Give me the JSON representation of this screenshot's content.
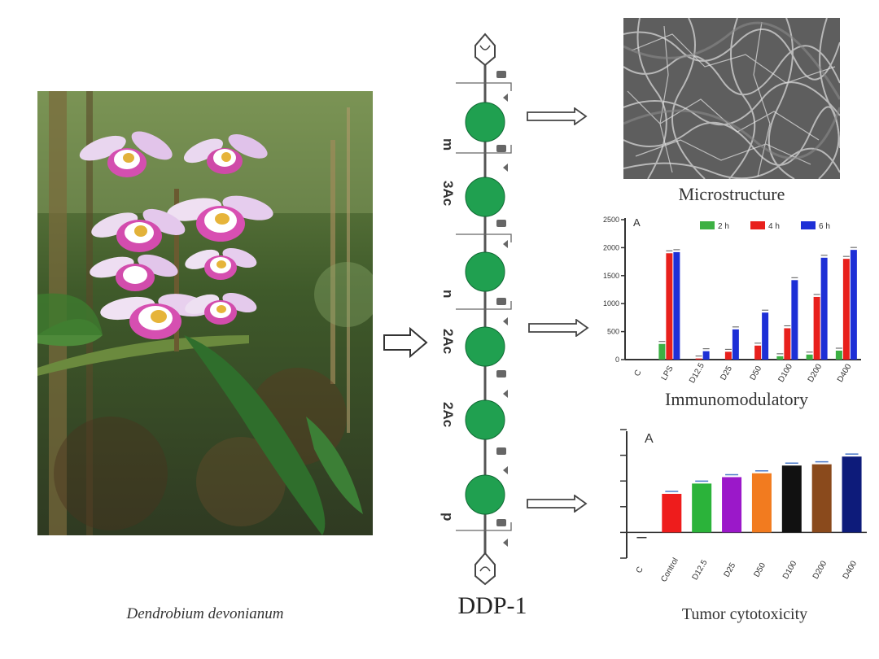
{
  "plant": {
    "caption": "Dendrobium devonianum"
  },
  "structure": {
    "name": "DDP-1",
    "side_labels": [
      "m",
      "3Ac",
      "n",
      "2Ac",
      "2Ac",
      "p"
    ]
  },
  "microstructure": {
    "caption": "Microstructure"
  },
  "immuno": {
    "caption": "Immunomodulatory",
    "panel_letter": "A",
    "chart_data": {
      "type": "bar",
      "categories": [
        "C",
        "LPS",
        "D12.5",
        "D25",
        "D50",
        "D100",
        "D200",
        "D400"
      ],
      "series": [
        {
          "name": "2 h",
          "color": "#3cb043",
          "values": [
            0,
            280,
            0,
            0,
            0,
            60,
            90,
            160
          ]
        },
        {
          "name": "4 h",
          "color": "#e8201c",
          "values": [
            0,
            1900,
            20,
            140,
            250,
            560,
            1120,
            1800
          ]
        },
        {
          "name": "6 h",
          "color": "#1d2fd6",
          "values": [
            0,
            1920,
            150,
            540,
            840,
            1420,
            1820,
            1960
          ]
        }
      ],
      "yticks": [
        "0",
        "500",
        "1000",
        "1500",
        "2000",
        "2500"
      ],
      "ylim": [
        0,
        2500
      ]
    }
  },
  "tumor": {
    "caption": "Tumor cytotoxicity",
    "panel_letter": "A",
    "chart_data": {
      "type": "bar",
      "categories": [
        "C",
        "Control",
        "D12.5",
        "D25",
        "D50",
        "D100",
        "D200",
        "D400"
      ],
      "values": [
        -2,
        15,
        19,
        21.5,
        23,
        26,
        26.5,
        29.5
      ],
      "colors": [
        "#333333",
        "#ee1c1c",
        "#2bb33a",
        "#9b18c9",
        "#f27b1f",
        "#111111",
        "#8a4a1c",
        "#0d1b7a"
      ],
      "ylim": [
        -10,
        40
      ]
    }
  }
}
